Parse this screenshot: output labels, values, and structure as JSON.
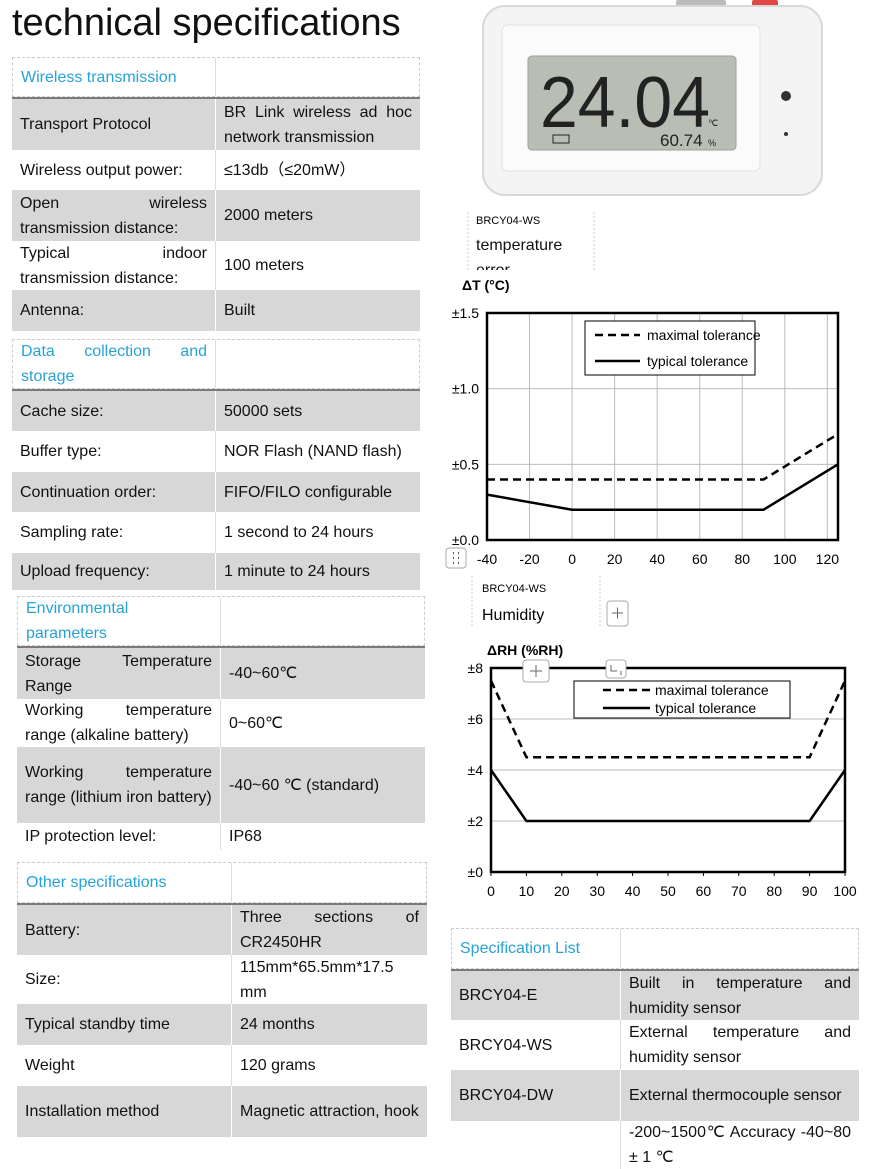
{
  "title": "technical specifications",
  "tables": [
    {
      "header": "Wireless transmission",
      "rows": [
        {
          "label": "Transport Protocol",
          "value": "BR Link wireless ad hoc network transmission"
        },
        {
          "label": "Wireless output power:",
          "value": "≤13db（≤20mW）"
        },
        {
          "label": "Open wireless transmission distance:",
          "value": "2000 meters"
        },
        {
          "label": "Typical indoor transmission distance:",
          "value": "100 meters"
        },
        {
          "label": "Antenna:",
          "value": "Built"
        }
      ]
    },
    {
      "header": "Data collection and storage",
      "rows": [
        {
          "label": "Cache size:",
          "value": "50000 sets"
        },
        {
          "label": "Buffer type:",
          "value": "NOR Flash (NAND flash)"
        },
        {
          "label": "Continuation order:",
          "value": "FIFO/FILO configurable"
        },
        {
          "label": "Sampling rate:",
          "value": "1 second to 24 hours"
        },
        {
          "label": "Upload frequency:",
          "value": "1 minute to 24 hours"
        }
      ]
    },
    {
      "header": "Environmental parameters",
      "rows": [
        {
          "label": "Storage Temperature Range",
          "value": "-40~60℃"
        },
        {
          "label": "Working temperature range (alkaline battery)",
          "value": "0~60℃"
        },
        {
          "label": "Working temperature range (lithium iron battery)",
          "value": "-40~60 ℃ (standard)"
        },
        {
          "label": "IP protection level:",
          "value": "IP68"
        }
      ]
    },
    {
      "header": "Other specifications",
      "rows": [
        {
          "label": "Battery:",
          "value": "Three sections of CR2450HR"
        },
        {
          "label": "Size:",
          "value": "115mm*65.5mm*17.5 mm"
        },
        {
          "label": "Typical standby time",
          "value": "24 months"
        },
        {
          "label": "Weight",
          "value": "120 grams"
        },
        {
          "label": "Installation method",
          "value": "Magnetic attraction, hook"
        }
      ]
    },
    {
      "header": "Specification List",
      "rows": [
        {
          "label": "BRCY04-E",
          "value": "Built in temperature and humidity sensor"
        },
        {
          "label": "BRCY04-WS",
          "value": "External temperature and humidity sensor"
        },
        {
          "label": "BRCY04-DW",
          "value": "External thermocouple sensor"
        },
        {
          "value": "-200~1500℃ Accuracy -40~80 ± 1 ℃"
        }
      ]
    }
  ],
  "device": {
    "reading": "24.04",
    "unit": "℃",
    "humidity": "60.74",
    "humidity_unit": "%"
  },
  "captions": [
    {
      "model": "BRCY04-WS",
      "label": "temperature error"
    },
    {
      "model": "BRCY04-WS",
      "label": "Humidity"
    }
  ],
  "chart_data": [
    {
      "type": "line",
      "y_label": "ΔT (°C)",
      "xlim": [
        -40,
        125
      ],
      "xticks": [
        -40,
        -20,
        0,
        20,
        40,
        60,
        80,
        100,
        120
      ],
      "ylim": [
        0,
        1.5
      ],
      "yticks": [
        {
          "value": 0,
          "label": "±0.0"
        },
        {
          "value": 0.5,
          "label": "±0.5"
        },
        {
          "value": 1,
          "label": "±1.0"
        },
        {
          "value": 1.5,
          "label": "±1.5"
        }
      ],
      "grid": "both",
      "series": [
        {
          "name": "maximal tolerance",
          "color": "#000000",
          "dash": true,
          "x": [
            -40,
            90,
            125
          ],
          "values": [
            0.4,
            0.4,
            0.7
          ]
        },
        {
          "name": "typical tolerance",
          "color": "#000000",
          "dash": false,
          "x": [
            -40,
            0,
            90,
            125
          ],
          "values": [
            0.3,
            0.2,
            0.2,
            0.5
          ]
        }
      ]
    },
    {
      "type": "line",
      "y_label": "ΔRH (%RH)",
      "xlim": [
        0,
        100
      ],
      "xticks": [
        0,
        10,
        20,
        30,
        40,
        50,
        60,
        70,
        80,
        90,
        100
      ],
      "ylim": [
        0,
        8
      ],
      "yticks": [
        {
          "value": 0,
          "label": "±0"
        },
        {
          "value": 2,
          "label": "±2"
        },
        {
          "value": 4,
          "label": "±4"
        },
        {
          "value": 6,
          "label": "±6"
        },
        {
          "value": 8,
          "label": "±8"
        }
      ],
      "grid": "y",
      "series": [
        {
          "name": "maximal tolerance",
          "color": "#000000",
          "dash": true,
          "x": [
            0,
            10,
            90,
            100
          ],
          "values": [
            7.5,
            4.5,
            4.5,
            7.5
          ]
        },
        {
          "name": "typical tolerance",
          "color": "#000000",
          "dash": false,
          "x": [
            0,
            10,
            90,
            100
          ],
          "values": [
            4,
            2,
            2,
            4
          ]
        }
      ]
    }
  ]
}
